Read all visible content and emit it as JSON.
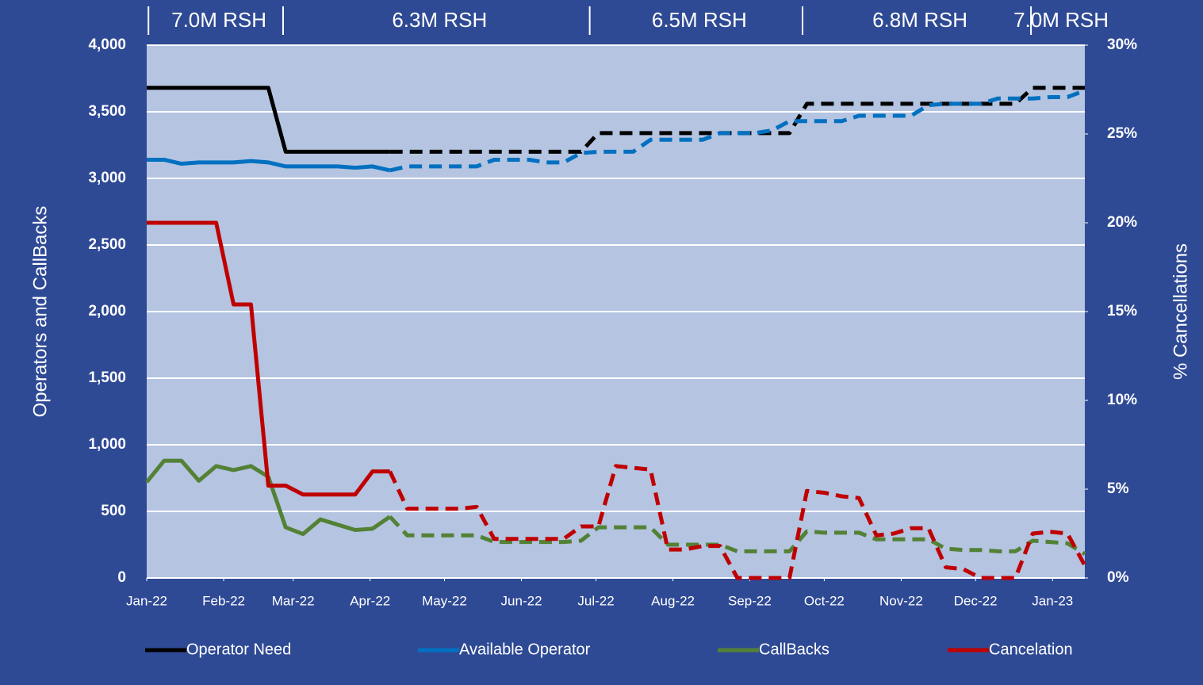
{
  "chart_data": {
    "type": "line",
    "x": [
      0,
      1,
      2,
      3,
      4,
      5,
      6,
      7,
      8,
      9,
      10,
      11,
      12,
      13,
      14,
      15,
      16,
      17,
      18,
      19,
      20,
      21,
      22,
      23,
      24,
      25,
      26,
      27,
      28,
      29,
      30,
      31,
      32,
      33,
      34,
      35,
      36,
      37,
      38,
      39,
      40,
      41,
      42,
      43,
      44,
      45,
      46,
      47,
      48,
      49,
      50,
      51,
      52,
      53,
      54
    ],
    "xlim": [
      0,
      54
    ],
    "xticks": [
      {
        "value": 0,
        "label": "Jan-22"
      },
      {
        "value": 4.43,
        "label": "Feb-22"
      },
      {
        "value": 8.43,
        "label": "Mar-22"
      },
      {
        "value": 12.86,
        "label": "Apr-22"
      },
      {
        "value": 17.14,
        "label": "May-22"
      },
      {
        "value": 21.57,
        "label": "Jun-22"
      },
      {
        "value": 25.86,
        "label": "Jul-22"
      },
      {
        "value": 30.29,
        "label": "Aug-22"
      },
      {
        "value": 34.71,
        "label": "Sep-22"
      },
      {
        "value": 39,
        "label": "Oct-22"
      },
      {
        "value": 43.43,
        "label": "Nov-22"
      },
      {
        "value": 47.71,
        "label": "Dec-22"
      },
      {
        "value": 52.14,
        "label": "Jan-23"
      }
    ],
    "ylabel": "Operators and CallBacks",
    "y2label": "% Cancellations",
    "ylim": [
      0,
      4000
    ],
    "yticks": [
      0,
      500,
      {
        "value": 1000,
        "label": "1,000"
      },
      {
        "value": 1500,
        "label": "1,500"
      },
      {
        "value": 2000,
        "label": "2,000"
      },
      {
        "value": 2500,
        "label": "2,500"
      },
      {
        "value": 3000,
        "label": "3,000"
      },
      {
        "value": 3500,
        "label": "3,500"
      },
      {
        "value": 4000,
        "label": "4,000"
      }
    ],
    "y2lim": [
      0,
      30
    ],
    "y2ticks": [
      {
        "value": 0,
        "label": "0%"
      },
      {
        "value": 5,
        "label": "5%"
      },
      {
        "value": 10,
        "label": "10%"
      },
      {
        "value": 15,
        "label": "15%"
      },
      {
        "value": 20,
        "label": "20%"
      },
      {
        "value": 25,
        "label": "25%"
      },
      {
        "value": 30,
        "label": "30%"
      }
    ],
    "grid": true,
    "forecast_from": 14,
    "periods": [
      {
        "label": "7.0M RSH",
        "start": 0.1,
        "end": 7.85
      },
      {
        "label": "6.3M RSH",
        "start": 7.85,
        "end": 25.5
      },
      {
        "label": "6.5M RSH",
        "start": 25.5,
        "end": 37.75
      },
      {
        "label": "6.8M RSH",
        "start": 37.75,
        "end": 50.9
      },
      {
        "label": "7.0M RSH",
        "start": 50.9,
        "end": 54
      }
    ],
    "legend": "bottom",
    "series": [
      {
        "name": "Operator Need",
        "color": "#000000",
        "values": [
          3680,
          3680,
          3680,
          3680,
          3680,
          3680,
          3680,
          3680,
          3200,
          3200,
          3200,
          3200,
          3200,
          3200,
          3200,
          3200,
          3200,
          3200,
          3200,
          3200,
          3200,
          3200,
          3200,
          3200,
          3200,
          3200,
          3340,
          3340,
          3340,
          3340,
          3340,
          3340,
          3340,
          3340,
          3340,
          3340,
          3340,
          3340,
          3560,
          3560,
          3560,
          3560,
          3560,
          3560,
          3560,
          3560,
          3560,
          3560,
          3560,
          3560,
          3560,
          3680,
          3680,
          3680,
          3680
        ]
      },
      {
        "name": "Available Operator",
        "color": "#0070c0",
        "values": [
          3140,
          3140,
          3110,
          3120,
          3120,
          3120,
          3130,
          3120,
          3090,
          3090,
          3090,
          3090,
          3080,
          3090,
          3060,
          3090,
          3090,
          3090,
          3090,
          3090,
          3140,
          3140,
          3140,
          3120,
          3120,
          3190,
          3200,
          3200,
          3200,
          3290,
          3290,
          3290,
          3290,
          3340,
          3340,
          3340,
          3360,
          3430,
          3430,
          3430,
          3430,
          3470,
          3470,
          3470,
          3470,
          3550,
          3560,
          3560,
          3560,
          3600,
          3600,
          3600,
          3610,
          3610,
          3660
        ]
      },
      {
        "name": "CallBacks",
        "color": "#538135",
        "values": [
          720,
          880,
          880,
          730,
          840,
          810,
          840,
          760,
          380,
          330,
          440,
          400,
          360,
          370,
          460,
          320,
          320,
          320,
          320,
          320,
          270,
          270,
          270,
          270,
          270,
          280,
          380,
          380,
          380,
          380,
          250,
          250,
          250,
          250,
          200,
          200,
          200,
          200,
          350,
          340,
          340,
          340,
          290,
          290,
          290,
          290,
          220,
          210,
          210,
          200,
          200,
          280,
          270,
          260,
          180
        ]
      },
      {
        "name": "Cancelation",
        "color": "#c00000",
        "axis": "y2",
        "values": [
          20,
          20,
          20,
          20,
          20,
          15.4,
          15.4,
          5.2,
          5.2,
          4.7,
          4.7,
          4.7,
          4.7,
          6.0,
          6.0,
          3.9,
          3.9,
          3.9,
          3.9,
          4.0,
          2.2,
          2.2,
          2.2,
          2.2,
          2.2,
          2.9,
          2.9,
          6.3,
          6.2,
          6.1,
          1.6,
          1.6,
          1.8,
          1.8,
          0,
          0,
          0,
          0,
          4.9,
          4.8,
          4.6,
          4.5,
          2.4,
          2.5,
          2.8,
          2.8,
          0.6,
          0.5,
          0,
          0,
          0,
          2.5,
          2.6,
          2.5,
          0.7
        ]
      }
    ]
  }
}
